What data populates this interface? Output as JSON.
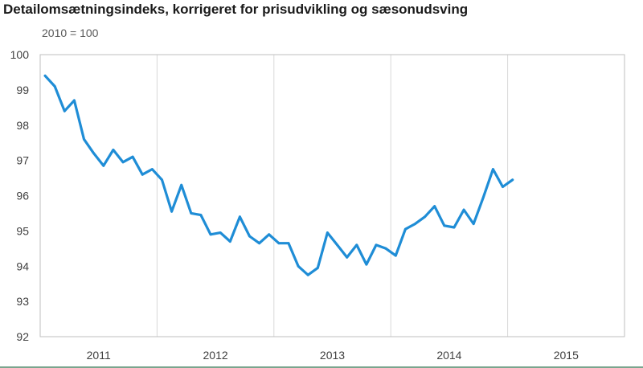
{
  "title": "Detailomsætningsindeks, korrigeret for prisudvikling og sæsonudsving",
  "subtitle": "2010 = 100",
  "colors": {
    "line": "#1f8dd6",
    "grid": "#d9d9d9",
    "axis": "#bfbfbf",
    "text": "#404040"
  },
  "chart_data": {
    "type": "line",
    "title": "Detailomsætningsindeks, korrigeret for prisudvikling og sæsonudsving",
    "subtitle": "2010 = 100",
    "xlabel": "",
    "ylabel": "",
    "ylim": [
      92,
      100
    ],
    "yticks": [
      "92",
      "93",
      "94",
      "95",
      "96",
      "97",
      "98",
      "99",
      "100"
    ],
    "xticks": [
      "2011",
      "2012",
      "2013",
      "2014",
      "2015"
    ],
    "grid": "vertical lines between years",
    "legend": "none",
    "x_start": "2011-01",
    "x_frequency": "monthly",
    "series": [
      {
        "values": [
          99.4,
          99.1,
          98.4,
          98.7,
          97.6,
          97.2,
          96.85,
          97.3,
          96.95,
          97.1,
          96.6,
          96.75,
          96.45,
          95.55,
          96.3,
          95.5,
          95.45,
          94.9,
          94.95,
          94.7,
          95.4,
          94.85,
          94.65,
          94.9,
          94.65,
          94.65,
          94.0,
          93.75,
          93.95,
          94.95,
          94.6,
          94.25,
          94.6,
          94.05,
          94.6,
          94.5,
          94.3,
          95.05,
          95.2,
          95.4,
          95.7,
          95.15,
          95.1,
          95.6,
          95.2,
          95.95,
          96.75,
          96.25,
          96.45
        ]
      }
    ]
  }
}
